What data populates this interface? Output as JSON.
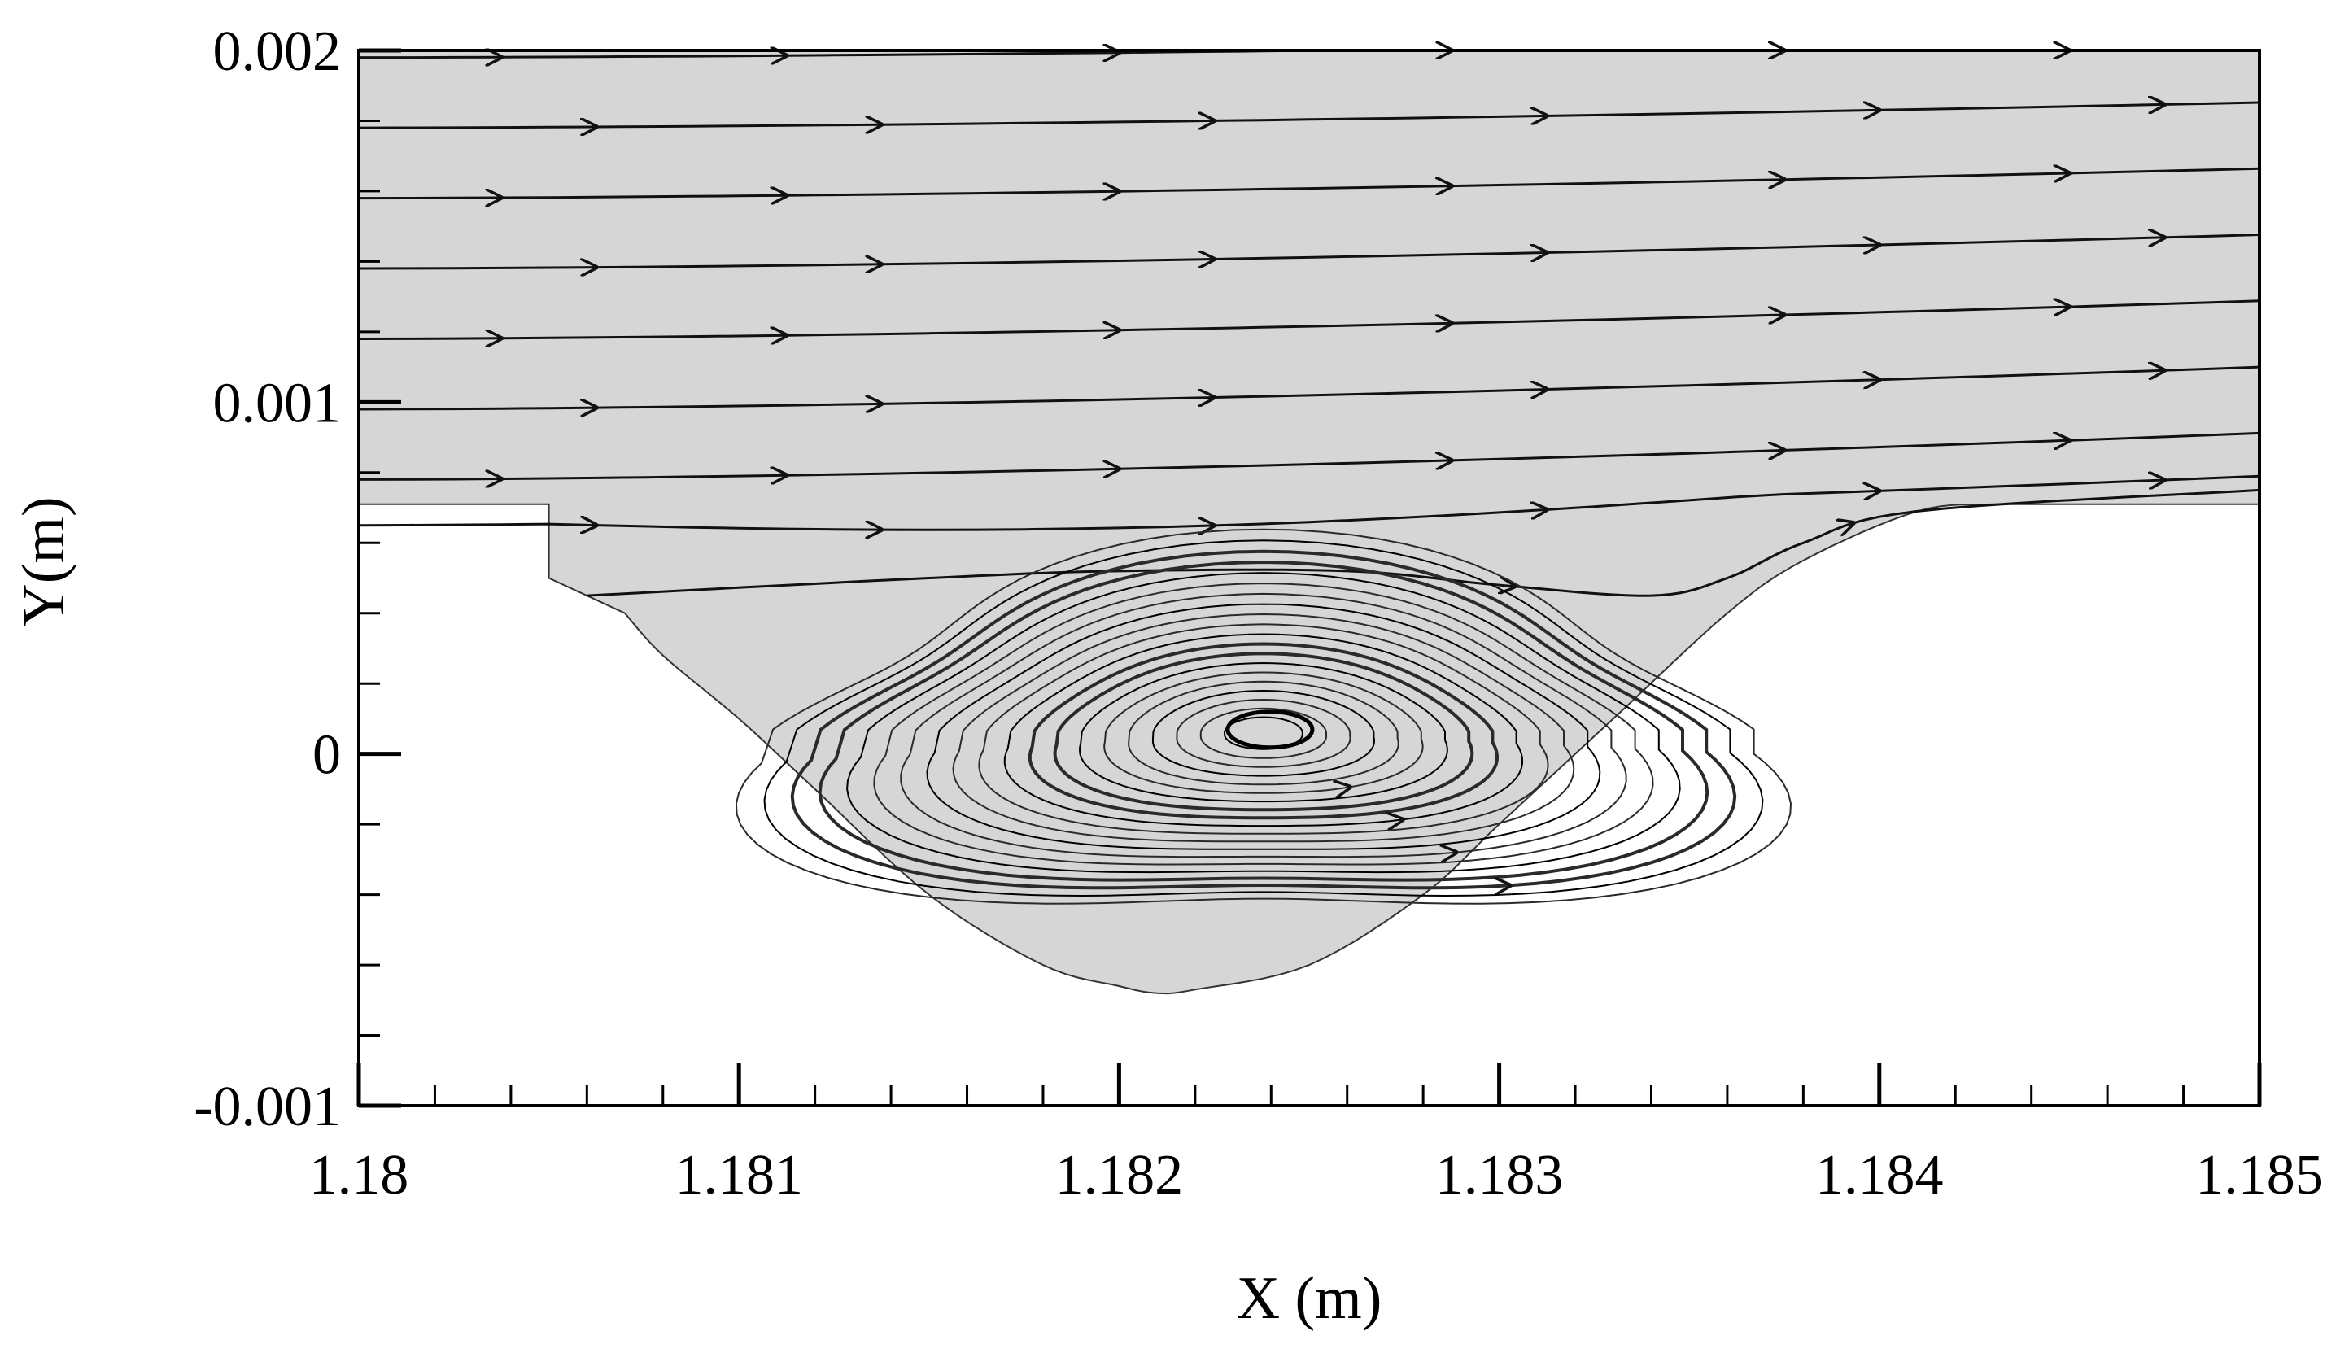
{
  "chart_data": {
    "type": "streamline",
    "xlabel": "X (m)",
    "ylabel": "Y(m)",
    "xlim": [
      1.18,
      1.185
    ],
    "ylim": [
      -0.001,
      0.002
    ],
    "x_ticks": [
      "1.18",
      "1.181",
      "1.182",
      "1.183",
      "1.184",
      "1.185"
    ],
    "y_ticks": [
      "0.002",
      "0.001",
      "0",
      "-0.001"
    ],
    "fluid_color": "#d6d6d6",
    "line_color": "#111111",
    "domain_boundary": [
      [
        1.18,
        0.00071
      ],
      [
        1.1805,
        0.00071
      ],
      [
        1.1805,
        0.0005
      ],
      [
        1.1807,
        0.0004
      ],
      [
        1.1808,
        0.00028
      ],
      [
        1.181,
        0.0001
      ],
      [
        1.1812,
        -0.0001
      ],
      [
        1.1815,
        -0.0004
      ],
      [
        1.1818,
        -0.0006
      ],
      [
        1.182,
        -0.00066
      ],
      [
        1.1821,
        -0.00068
      ],
      [
        1.1822,
        -0.00067
      ],
      [
        1.1825,
        -0.0006
      ],
      [
        1.1828,
        -0.0004
      ],
      [
        1.183,
        -0.0002
      ],
      [
        1.1833,
        0.0001
      ],
      [
        1.1836,
        0.0004
      ],
      [
        1.1838,
        0.00055
      ],
      [
        1.1841,
        0.00069
      ],
      [
        1.1843,
        0.00071
      ],
      [
        1.185,
        0.00071
      ],
      [
        1.185,
        0.002
      ],
      [
        1.18,
        0.002
      ]
    ],
    "through_streamlines_y_start": [
      0.00198,
      0.00178,
      0.00158,
      0.00138,
      0.00118,
      0.00098,
      0.00078,
      0.00065
    ],
    "separation_streamline": [
      [
        1.1806,
        0.00045
      ],
      [
        1.1815,
        0.0005
      ],
      [
        1.182,
        0.00052
      ],
      [
        1.1826,
        0.00052
      ],
      [
        1.183,
        0.00048
      ],
      [
        1.1834,
        0.00045
      ],
      [
        1.1836,
        0.0005
      ],
      [
        1.1838,
        0.0006
      ],
      [
        1.1841,
        0.00069
      ],
      [
        1.185,
        0.00075
      ]
    ],
    "vortex_center": [
      1.18238,
      6e-05
    ],
    "vortex_loop_count": 20
  }
}
